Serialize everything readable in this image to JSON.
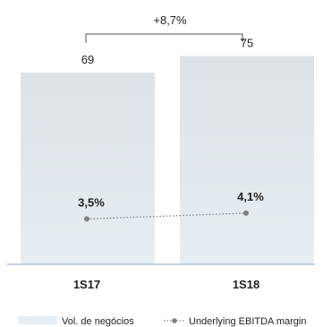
{
  "chart_data": {
    "type": "bar",
    "categories": [
      "1S17",
      "1S18"
    ],
    "series": [
      {
        "name": "Vol. de negócios",
        "type": "bar",
        "values": [
          69,
          75
        ],
        "value_labels": [
          "69",
          "75"
        ],
        "color": "#dde2e6",
        "color_bottom": "#e6eef3"
      },
      {
        "name": "Underlying EBITDA  margin",
        "type": "line",
        "values": [
          3.5,
          4.1
        ],
        "value_labels": [
          "3,5%",
          "4,1%"
        ],
        "color": "#808080"
      }
    ],
    "growth_annotation": "+8,7%",
    "bar_ylim": [
      0,
      100
    ],
    "margin_ylim": [
      0,
      12
    ],
    "grid": false,
    "legend_position": "bottom",
    "xlabel": "",
    "ylabel": "",
    "axis_color": "#9fb6d6"
  }
}
